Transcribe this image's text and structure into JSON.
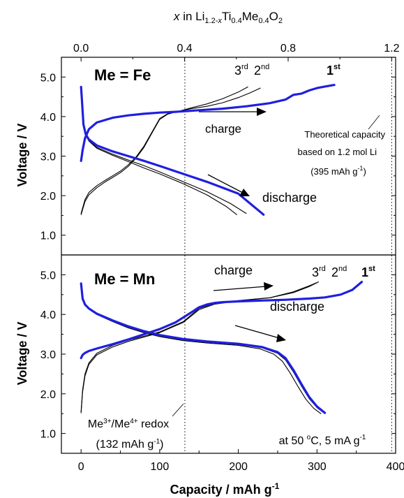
{
  "chart_data": [
    {
      "type": "line",
      "panel_label": "Me = Fe",
      "top_axis": {
        "label_parts": [
          "x",
          " in Li",
          "1.2-x",
          "Ti",
          "0.4",
          "Me",
          "0.4",
          "O",
          "2"
        ],
        "ticks": [
          0.0,
          0.4,
          0.8,
          1.2
        ],
        "tick_labels": [
          "0.0",
          "0.4",
          "0.8",
          "1.2"
        ]
      },
      "xlim": [
        -25,
        400
      ],
      "ylim": [
        0.5,
        5.5
      ],
      "yticks": [
        1.0,
        2.0,
        3.0,
        4.0,
        5.0
      ],
      "ytick_labels": [
        "1.0",
        "2.0",
        "3.0",
        "4.0",
        "5.0"
      ],
      "ylabel": "Voltage  /  V",
      "reference_lines": [
        132,
        395
      ],
      "series": [
        {
          "name": "1st",
          "cycle": 1,
          "color": "#1f1fe0",
          "width": 3.2,
          "x_charge": [
            0,
            2,
            5,
            10,
            20,
            40,
            60,
            80,
            100,
            120,
            135,
            150,
            180,
            210,
            240,
            260,
            270,
            280,
            290,
            300,
            310,
            322
          ],
          "y_charge": [
            2.88,
            3.15,
            3.45,
            3.68,
            3.85,
            3.97,
            4.03,
            4.07,
            4.1,
            4.12,
            4.14,
            4.16,
            4.2,
            4.26,
            4.34,
            4.43,
            4.55,
            4.58,
            4.66,
            4.72,
            4.76,
            4.8
          ],
          "x_discharge": [
            0,
            1,
            3,
            6,
            10,
            20,
            40,
            60,
            80,
            100,
            130,
            160,
            200,
            215,
            232
          ],
          "y_discharge": [
            4.75,
            4.45,
            3.8,
            3.55,
            3.42,
            3.27,
            3.12,
            3.0,
            2.88,
            2.75,
            2.55,
            2.35,
            2.05,
            1.8,
            1.52
          ]
        },
        {
          "name": "2nd",
          "cycle": 2,
          "color": "#000000",
          "width": 1.1,
          "x_charge": [
            0,
            5,
            10,
            20,
            30,
            40,
            50,
            60,
            70,
            80,
            90,
            100,
            110,
            125,
            140,
            160,
            180,
            200,
            215,
            228
          ],
          "y_charge": [
            1.55,
            1.9,
            2.08,
            2.25,
            2.38,
            2.5,
            2.62,
            2.78,
            2.98,
            3.25,
            3.6,
            3.95,
            4.07,
            4.14,
            4.2,
            4.26,
            4.35,
            4.48,
            4.6,
            4.72
          ],
          "x_discharge": [
            0,
            1,
            3,
            6,
            10,
            20,
            40,
            60,
            80,
            100,
            130,
            160,
            190,
            210
          ],
          "y_discharge": [
            4.75,
            4.4,
            3.8,
            3.55,
            3.4,
            3.22,
            3.05,
            2.9,
            2.76,
            2.6,
            2.35,
            2.1,
            1.8,
            1.55
          ]
        },
        {
          "name": "3rd",
          "cycle": 3,
          "color": "#000000",
          "width": 1.1,
          "x_charge": [
            0,
            5,
            10,
            20,
            30,
            40,
            50,
            60,
            70,
            80,
            90,
            100,
            110,
            125,
            140,
            160,
            180,
            200,
            212
          ],
          "y_charge": [
            1.52,
            1.85,
            2.02,
            2.2,
            2.34,
            2.46,
            2.58,
            2.74,
            2.95,
            3.22,
            3.58,
            3.93,
            4.06,
            4.14,
            4.22,
            4.32,
            4.45,
            4.62,
            4.75
          ],
          "x_discharge": [
            0,
            1,
            3,
            6,
            10,
            20,
            40,
            60,
            80,
            100,
            130,
            160,
            185,
            198
          ],
          "y_discharge": [
            4.75,
            4.4,
            3.78,
            3.52,
            3.38,
            3.2,
            3.02,
            2.86,
            2.7,
            2.55,
            2.3,
            2.02,
            1.72,
            1.52
          ]
        }
      ],
      "annotations": [
        "charge",
        "discharge",
        "Theoretical capacity",
        "based on 1.2 mol Li",
        "(395 mAh g-1)",
        "1st",
        "2nd",
        "3rd"
      ]
    },
    {
      "type": "line",
      "panel_label": "Me = Mn",
      "xlim": [
        -25,
        400
      ],
      "ylim": [
        0.5,
        5.5
      ],
      "xticks": [
        0,
        100,
        200,
        300,
        400
      ],
      "xtick_labels": [
        "0",
        "100",
        "200",
        "300",
        "400"
      ],
      "xlabel": "Capacity  /  mAh g-1",
      "yticks": [
        1.0,
        2.0,
        3.0,
        4.0,
        5.0
      ],
      "ytick_labels": [
        "1.0",
        "2.0",
        "3.0",
        "4.0",
        "5.0"
      ],
      "ylabel": "Voltage  /  V",
      "reference_lines": [
        132,
        395
      ],
      "series": [
        {
          "name": "1st",
          "cycle": 1,
          "color": "#1f1fe0",
          "width": 3.2,
          "x_charge": [
            0,
            2,
            5,
            10,
            20,
            40,
            60,
            80,
            100,
            120,
            140,
            150,
            160,
            170,
            180,
            200,
            230,
            260,
            290,
            310,
            330,
            345,
            357
          ],
          "y_charge": [
            2.9,
            2.98,
            3.03,
            3.08,
            3.14,
            3.25,
            3.37,
            3.5,
            3.63,
            3.8,
            4.05,
            4.18,
            4.25,
            4.29,
            4.31,
            4.33,
            4.35,
            4.37,
            4.4,
            4.43,
            4.5,
            4.62,
            4.82
          ],
          "x_discharge": [
            0,
            2,
            5,
            10,
            20,
            40,
            60,
            80,
            100,
            130,
            160,
            200,
            230,
            250,
            260,
            270,
            280,
            290,
            300,
            310
          ],
          "y_discharge": [
            4.78,
            4.4,
            4.25,
            4.15,
            4.02,
            3.85,
            3.7,
            3.58,
            3.48,
            3.38,
            3.32,
            3.26,
            3.18,
            3.05,
            2.9,
            2.6,
            2.25,
            1.92,
            1.68,
            1.52
          ]
        },
        {
          "name": "2nd",
          "cycle": 2,
          "color": "#000000",
          "width": 1.1,
          "x_charge": [
            0,
            2,
            5,
            10,
            20,
            40,
            60,
            80,
            100,
            130,
            150,
            170,
            200,
            240,
            270,
            290,
            300
          ],
          "y_charge": [
            1.55,
            2.1,
            2.5,
            2.78,
            3.02,
            3.22,
            3.35,
            3.45,
            3.56,
            3.82,
            4.15,
            4.28,
            4.35,
            4.42,
            4.55,
            4.7,
            4.8
          ],
          "x_discharge": [
            0,
            2,
            5,
            10,
            20,
            40,
            60,
            80,
            100,
            130,
            160,
            200,
            230,
            250,
            260,
            270,
            280,
            290,
            300,
            310
          ],
          "y_discharge": [
            4.75,
            4.4,
            4.25,
            4.15,
            4.02,
            3.84,
            3.68,
            3.56,
            3.46,
            3.36,
            3.3,
            3.24,
            3.16,
            3.02,
            2.85,
            2.55,
            2.2,
            1.88,
            1.65,
            1.5
          ]
        },
        {
          "name": "3rd",
          "cycle": 3,
          "color": "#000000",
          "width": 1.1,
          "x_charge": [
            0,
            2,
            5,
            10,
            20,
            40,
            60,
            80,
            100,
            130,
            150,
            170,
            200,
            240,
            270,
            290,
            302
          ],
          "y_charge": [
            1.52,
            2.05,
            2.45,
            2.74,
            2.98,
            3.18,
            3.32,
            3.43,
            3.54,
            3.8,
            4.12,
            4.26,
            4.34,
            4.42,
            4.57,
            4.72,
            4.82
          ],
          "x_discharge": [
            0,
            2,
            5,
            10,
            20,
            40,
            60,
            80,
            100,
            130,
            160,
            200,
            228,
            245,
            256,
            266,
            276,
            286,
            296,
            305
          ],
          "y_discharge": [
            4.75,
            4.4,
            4.24,
            4.13,
            4.0,
            3.82,
            3.66,
            3.54,
            3.44,
            3.34,
            3.28,
            3.22,
            3.13,
            3.0,
            2.82,
            2.52,
            2.18,
            1.86,
            1.63,
            1.5
          ]
        }
      ],
      "annotations": [
        "charge",
        "discharge",
        "Me3+/Me4+ redox",
        "(132 mAh g-1)",
        "at 50 °C, 5 mA g-1",
        "1st",
        "2nd",
        "3rd"
      ]
    }
  ],
  "labels": {
    "panel_top": "Me = Fe",
    "panel_bottom": "Me = Mn",
    "charge": "charge",
    "discharge": "discharge",
    "theo1": "Theoretical capacity",
    "theo2": "based on 1.2 mol Li",
    "theo3_pre": "(395 mAh g",
    "theo3_sup": "-1",
    "theo3_post": ")",
    "redox1_a": "Me",
    "redox1_b": "3+",
    "redox1_c": "/Me",
    "redox1_d": "4+",
    "redox1_e": " redox",
    "redox2_pre": "(132 mAh g",
    "redox2_sup": "-1",
    "redox2_post": ")",
    "cond_pre": "at 50 ",
    "cond_sup": "o",
    "cond_mid": "C, 5 mA g",
    "cond_sup2": "-1",
    "c1": "1",
    "c1s": "st",
    "c2": "2",
    "c2s": "nd",
    "c3": "3",
    "c3s": "rd",
    "xlabel_pre": "Capacity  /  mAh g",
    "xlabel_sup": "-1",
    "ylabel": "Voltage  /  V",
    "top_x": "x",
    "top_li": " in Li",
    "top_li_sub": "1.2-",
    "top_li_sub_x": "x",
    "top_ti": "Ti",
    "top_ti_sub": "0.4",
    "top_me": "Me",
    "top_me_sub": "0.4",
    "top_o": "O",
    "top_o_sub": "2"
  }
}
